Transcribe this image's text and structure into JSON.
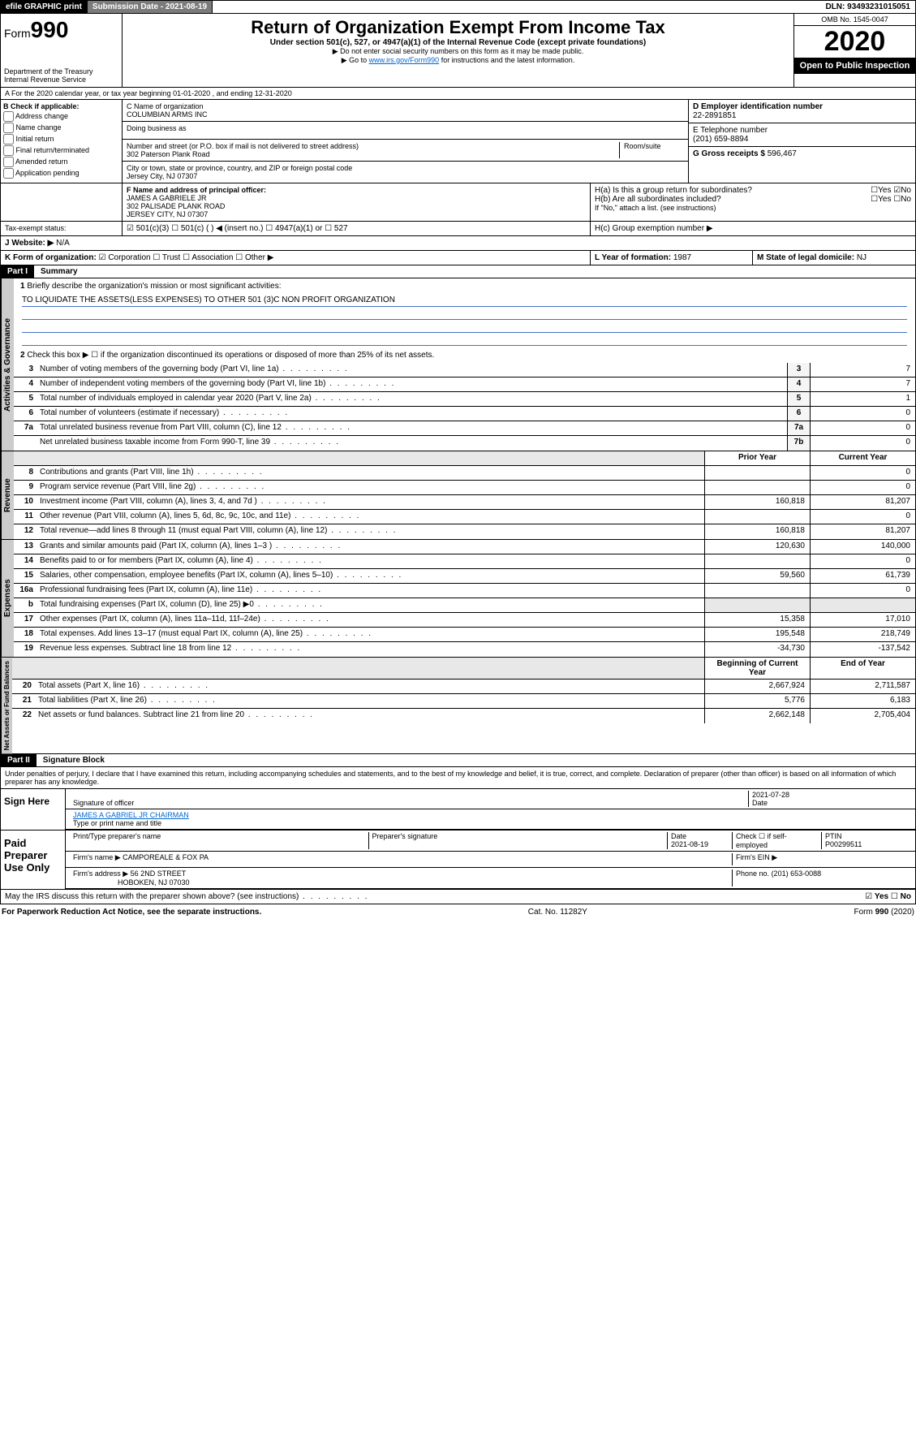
{
  "topbar": {
    "efile": "efile GRAPHIC print",
    "submission": "Submission Date - 2021-08-19",
    "dln": "DLN: 93493231015051"
  },
  "header": {
    "form_label": "Form",
    "form_num": "990",
    "dept": "Department of the Treasury",
    "irs": "Internal Revenue Service",
    "title": "Return of Organization Exempt From Income Tax",
    "subtitle": "Under section 501(c), 527, or 4947(a)(1) of the Internal Revenue Code (except private foundations)",
    "note1": "▶ Do not enter social security numbers on this form as it may be made public.",
    "note2_pre": "▶ Go to ",
    "note2_link": "www.irs.gov/Form990",
    "note2_post": " for instructions and the latest information.",
    "omb": "OMB No. 1545-0047",
    "year": "2020",
    "open": "Open to Public Inspection"
  },
  "section_a": "A For the 2020 calendar year, or tax year beginning 01-01-2020    , and ending 12-31-2020",
  "box_b": {
    "label": "B Check if applicable:",
    "opts": [
      "Address change",
      "Name change",
      "Initial return",
      "Final return/terminated",
      "Amended return",
      "Application pending"
    ]
  },
  "box_c": {
    "name_lbl": "C Name of organization",
    "name": "COLUMBIAN ARMS INC",
    "dba_lbl": "Doing business as",
    "addr_lbl": "Number and street (or P.O. box if mail is not delivered to street address)",
    "room_lbl": "Room/suite",
    "addr": "302 Paterson Plank Road",
    "city_lbl": "City or town, state or province, country, and ZIP or foreign postal code",
    "city": "Jersey City, NJ  07307"
  },
  "box_d": {
    "lbl": "D Employer identification number",
    "val": "22-2891851"
  },
  "box_e": {
    "lbl": "E Telephone number",
    "val": "(201) 659-8894"
  },
  "box_g": {
    "lbl": "G Gross receipts $",
    "val": "596,467"
  },
  "box_f": {
    "lbl": "F Name and address of principal officer:",
    "name": "JAMES A GABRIELE JR",
    "addr1": "302 PALISADE PLANK ROAD",
    "addr2": "JERSEY CITY, NJ  07307"
  },
  "box_h": {
    "a": "H(a)  Is this a group return for subordinates?",
    "b": "H(b)  Are all subordinates included?",
    "b_note": "If \"No,\" attach a list. (see instructions)",
    "c": "H(c)  Group exemption number ▶",
    "yes": "Yes",
    "no": "No"
  },
  "tax_exempt": {
    "lbl": "Tax-exempt status:",
    "o1": "501(c)(3)",
    "o2": "501(c) (  ) ◀ (insert no.)",
    "o3": "4947(a)(1) or",
    "o4": "527"
  },
  "website": {
    "lbl": "J   Website: ▶",
    "val": "N/A"
  },
  "box_k": {
    "lbl": "K Form of organization:",
    "o1": "Corporation",
    "o2": "Trust",
    "o3": "Association",
    "o4": "Other ▶"
  },
  "box_l": {
    "lbl": "L Year of formation:",
    "val": "1987"
  },
  "box_m": {
    "lbl": "M State of legal domicile:",
    "val": "NJ"
  },
  "part1": {
    "hdr": "Part I",
    "title": "Summary"
  },
  "summary": {
    "l1": "Briefly describe the organization's mission or most significant activities:",
    "mission": "TO LIQUIDATE THE ASSETS(LESS EXPENSES) TO OTHER 501 (3)C NON PROFIT ORGANIZATION",
    "l2": "Check this box ▶ ☐  if the organization discontinued its operations or disposed of more than 25% of its net assets.",
    "rows": [
      {
        "n": "3",
        "t": "Number of voting members of the governing body (Part VI, line 1a)",
        "b": "3",
        "v": "7"
      },
      {
        "n": "4",
        "t": "Number of independent voting members of the governing body (Part VI, line 1b)",
        "b": "4",
        "v": "7"
      },
      {
        "n": "5",
        "t": "Total number of individuals employed in calendar year 2020 (Part V, line 2a)",
        "b": "5",
        "v": "1"
      },
      {
        "n": "6",
        "t": "Total number of volunteers (estimate if necessary)",
        "b": "6",
        "v": "0"
      },
      {
        "n": "7a",
        "t": "Total unrelated business revenue from Part VIII, column (C), line 12",
        "b": "7a",
        "v": "0"
      },
      {
        "n": "",
        "t": "Net unrelated business taxable income from Form 990-T, line 39",
        "b": "7b",
        "v": "0"
      }
    ],
    "col_prior": "Prior Year",
    "col_current": "Current Year",
    "col_begin": "Beginning of Current Year",
    "col_end": "End of Year",
    "revenue": [
      {
        "n": "8",
        "t": "Contributions and grants (Part VIII, line 1h)",
        "p": "",
        "c": "0"
      },
      {
        "n": "9",
        "t": "Program service revenue (Part VIII, line 2g)",
        "p": "",
        "c": "0"
      },
      {
        "n": "10",
        "t": "Investment income (Part VIII, column (A), lines 3, 4, and 7d )",
        "p": "160,818",
        "c": "81,207"
      },
      {
        "n": "11",
        "t": "Other revenue (Part VIII, column (A), lines 5, 6d, 8c, 9c, 10c, and 11e)",
        "p": "",
        "c": "0"
      },
      {
        "n": "12",
        "t": "Total revenue—add lines 8 through 11 (must equal Part VIII, column (A), line 12)",
        "p": "160,818",
        "c": "81,207"
      }
    ],
    "expenses": [
      {
        "n": "13",
        "t": "Grants and similar amounts paid (Part IX, column (A), lines 1–3 )",
        "p": "120,630",
        "c": "140,000"
      },
      {
        "n": "14",
        "t": "Benefits paid to or for members (Part IX, column (A), line 4)",
        "p": "",
        "c": "0"
      },
      {
        "n": "15",
        "t": "Salaries, other compensation, employee benefits (Part IX, column (A), lines 5–10)",
        "p": "59,560",
        "c": "61,739"
      },
      {
        "n": "16a",
        "t": "Professional fundraising fees (Part IX, column (A), line 11e)",
        "p": "",
        "c": "0"
      },
      {
        "n": "b",
        "t": "Total fundraising expenses (Part IX, column (D), line 25) ▶0",
        "p": "—",
        "c": "—"
      },
      {
        "n": "17",
        "t": "Other expenses (Part IX, column (A), lines 11a–11d, 11f–24e)",
        "p": "15,358",
        "c": "17,010"
      },
      {
        "n": "18",
        "t": "Total expenses. Add lines 13–17 (must equal Part IX, column (A), line 25)",
        "p": "195,548",
        "c": "218,749"
      },
      {
        "n": "19",
        "t": "Revenue less expenses. Subtract line 18 from line 12",
        "p": "-34,730",
        "c": "-137,542"
      }
    ],
    "netassets": [
      {
        "n": "20",
        "t": "Total assets (Part X, line 16)",
        "p": "2,667,924",
        "c": "2,711,587"
      },
      {
        "n": "21",
        "t": "Total liabilities (Part X, line 26)",
        "p": "5,776",
        "c": "6,183"
      },
      {
        "n": "22",
        "t": "Net assets or fund balances. Subtract line 21 from line 20",
        "p": "2,662,148",
        "c": "2,705,404"
      }
    ],
    "tab_gov": "Activities & Governance",
    "tab_rev": "Revenue",
    "tab_exp": "Expenses",
    "tab_net": "Net Assets or Fund Balances"
  },
  "part2": {
    "hdr": "Part II",
    "title": "Signature Block"
  },
  "perjury": "Under penalties of perjury, I declare that I have examined this return, including accompanying schedules and statements, and to the best of my knowledge and belief, it is true, correct, and complete. Declaration of preparer (other than officer) is based on all information of which preparer has any knowledge.",
  "sign": {
    "here": "Sign Here",
    "sig_lbl": "Signature of officer",
    "date": "2021-07-28",
    "date_lbl": "Date",
    "name": "JAMES A GABRIEL JR  CHAIRMAN",
    "name_lbl": "Type or print name and title"
  },
  "paid": {
    "hdr": "Paid Preparer Use Only",
    "col1": "Print/Type preparer's name",
    "col2": "Preparer's signature",
    "col3": "Date",
    "date": "2021-08-19",
    "check_lbl": "Check ☐ if self-employed",
    "ptin_lbl": "PTIN",
    "ptin": "P00299511",
    "firm_lbl": "Firm's name    ▶",
    "firm": "CAMPOREALE & FOX PA",
    "ein_lbl": "Firm's EIN ▶",
    "addr_lbl": "Firm's address ▶",
    "addr1": "56 2ND STREET",
    "addr2": "HOBOKEN, NJ  07030",
    "phone_lbl": "Phone no.",
    "phone": "(201) 653-0088"
  },
  "discuss": "May the IRS discuss this return with the preparer shown above? (see instructions)",
  "footer": {
    "pra": "For Paperwork Reduction Act Notice, see the separate instructions.",
    "cat": "Cat. No. 11282Y",
    "form": "Form 990 (2020)"
  }
}
